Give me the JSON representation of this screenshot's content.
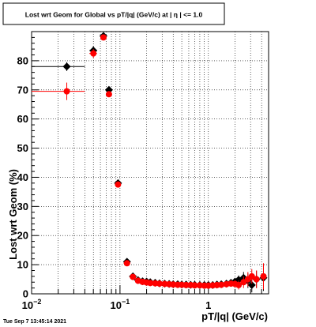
{
  "footer": {
    "timestamp": "Tue Sep  7 13:45:14 2021"
  },
  "chart_data": {
    "type": "scatter",
    "title": "Lost wrt Geom for Global vs pT/|q| (GeV/c) at |  η | <= 1.0",
    "xlabel": "pT/|q| (GeV/c)",
    "ylabel": "Lost wrt Geom (%)",
    "xscale": "log",
    "xlim": [
      0.01,
      4.8
    ],
    "ylim": [
      0,
      90
    ],
    "grid": true,
    "x_tick_labels": [
      {
        "value": 0.01,
        "label": "10",
        "exp": "−2"
      },
      {
        "value": 0.1,
        "label": "10",
        "exp": "−1"
      },
      {
        "value": 1,
        "label": "1",
        "exp": ""
      }
    ],
    "y_tick_labels": [
      0,
      10,
      20,
      30,
      40,
      50,
      60,
      70,
      80
    ],
    "series": [
      {
        "color": "#000000",
        "marker": "diamond",
        "points": [
          {
            "x": 0.025,
            "y": 78,
            "xlo": 0.01,
            "xhi": 0.04,
            "yerr": 1.5
          },
          {
            "x": 0.05,
            "y": 83.5,
            "xlo": 0.045,
            "xhi": 0.055,
            "yerr": 1.5
          },
          {
            "x": 0.065,
            "y": 88.5,
            "xlo": 0.06,
            "xhi": 0.07,
            "yerr": 1
          },
          {
            "x": 0.075,
            "y": 70,
            "xlo": 0.07,
            "xhi": 0.08,
            "yerr": 1
          },
          {
            "x": 0.095,
            "y": 38,
            "xlo": 0.09,
            "xhi": 0.1,
            "yerr": 1
          },
          {
            "x": 0.12,
            "y": 11,
            "xlo": 0.11,
            "xhi": 0.13,
            "yerr": 1
          },
          {
            "x": 0.14,
            "y": 6,
            "yerr": 0.8
          },
          {
            "x": 0.16,
            "y": 4.7,
            "yerr": 0.5
          },
          {
            "x": 0.18,
            "y": 4.3,
            "yerr": 0.5
          },
          {
            "x": 0.2,
            "y": 4.2,
            "yerr": 0.5
          },
          {
            "x": 0.22,
            "y": 4.0,
            "yerr": 0.5
          },
          {
            "x": 0.25,
            "y": 3.8,
            "yerr": 0.5
          },
          {
            "x": 0.28,
            "y": 3.6,
            "yerr": 0.5
          },
          {
            "x": 0.32,
            "y": 3.5,
            "yerr": 0.5
          },
          {
            "x": 0.36,
            "y": 3.4,
            "yerr": 0.5
          },
          {
            "x": 0.4,
            "y": 3.3,
            "yerr": 0.5
          },
          {
            "x": 0.45,
            "y": 3.3,
            "yerr": 0.5
          },
          {
            "x": 0.5,
            "y": 3.2,
            "yerr": 0.5
          },
          {
            "x": 0.56,
            "y": 3.2,
            "yerr": 0.5
          },
          {
            "x": 0.63,
            "y": 3.1,
            "yerr": 0.5
          },
          {
            "x": 0.7,
            "y": 3.1,
            "yerr": 0.5
          },
          {
            "x": 0.8,
            "y": 3.0,
            "yerr": 0.6
          },
          {
            "x": 0.9,
            "y": 3.0,
            "yerr": 0.6
          },
          {
            "x": 1.0,
            "y": 3.0,
            "yerr": 0.6
          },
          {
            "x": 1.12,
            "y": 3.0,
            "yerr": 0.6
          },
          {
            "x": 1.25,
            "y": 3.2,
            "yerr": 0.7
          },
          {
            "x": 1.4,
            "y": 3.3,
            "yerr": 0.7
          },
          {
            "x": 1.6,
            "y": 3.5,
            "yerr": 0.8
          },
          {
            "x": 1.8,
            "y": 3.8,
            "yerr": 1
          },
          {
            "x": 2.0,
            "y": 4.2,
            "yerr": 1.2
          },
          {
            "x": 2.2,
            "y": 4.8,
            "yerr": 1.5
          },
          {
            "x": 2.5,
            "y": 5.5,
            "yerr": 2
          },
          {
            "x": 2.8,
            "y": 4.5,
            "yerr": 2.5
          },
          {
            "x": 3.1,
            "y": 3.0,
            "yerr": 2.5
          },
          {
            "x": 3.5,
            "y": 5.0,
            "yerr": 3
          },
          {
            "x": 4.2,
            "y": 5.5,
            "yerr": 4.5
          }
        ]
      },
      {
        "color": "#ff0000",
        "marker": "circle",
        "points": [
          {
            "x": 0.025,
            "y": 69.5,
            "xlo": 0.01,
            "xhi": 0.04,
            "yerr": 3
          },
          {
            "x": 0.05,
            "y": 82.5,
            "xlo": 0.045,
            "xhi": 0.055,
            "yerr": 1.5
          },
          {
            "x": 0.065,
            "y": 88,
            "xlo": 0.06,
            "xhi": 0.07,
            "yerr": 1
          },
          {
            "x": 0.075,
            "y": 68.5,
            "xlo": 0.07,
            "xhi": 0.08,
            "yerr": 1
          },
          {
            "x": 0.095,
            "y": 37.5,
            "xlo": 0.09,
            "xhi": 0.1,
            "yerr": 1
          },
          {
            "x": 0.12,
            "y": 10.5,
            "xlo": 0.11,
            "xhi": 0.13,
            "yerr": 1
          },
          {
            "x": 0.14,
            "y": 5.8,
            "yerr": 0.8
          },
          {
            "x": 0.16,
            "y": 4.5,
            "yerr": 0.5
          },
          {
            "x": 0.18,
            "y": 4.1,
            "yerr": 0.5
          },
          {
            "x": 0.2,
            "y": 3.9,
            "yerr": 0.5
          },
          {
            "x": 0.22,
            "y": 3.7,
            "yerr": 0.5
          },
          {
            "x": 0.25,
            "y": 3.6,
            "yerr": 0.5
          },
          {
            "x": 0.28,
            "y": 3.5,
            "yerr": 0.5
          },
          {
            "x": 0.32,
            "y": 3.4,
            "yerr": 0.5
          },
          {
            "x": 0.36,
            "y": 3.3,
            "yerr": 0.5
          },
          {
            "x": 0.4,
            "y": 3.2,
            "yerr": 0.5
          },
          {
            "x": 0.45,
            "y": 3.1,
            "yerr": 0.5
          },
          {
            "x": 0.5,
            "y": 3.1,
            "yerr": 0.5
          },
          {
            "x": 0.56,
            "y": 3.0,
            "yerr": 0.5
          },
          {
            "x": 0.63,
            "y": 3.0,
            "yerr": 0.5
          },
          {
            "x": 0.7,
            "y": 2.9,
            "yerr": 0.5
          },
          {
            "x": 0.8,
            "y": 2.9,
            "yerr": 0.6
          },
          {
            "x": 0.9,
            "y": 2.8,
            "yerr": 0.6
          },
          {
            "x": 1.0,
            "y": 2.8,
            "yerr": 0.6
          },
          {
            "x": 1.12,
            "y": 2.9,
            "yerr": 0.6
          },
          {
            "x": 1.25,
            "y": 3.0,
            "yerr": 0.7
          },
          {
            "x": 1.4,
            "y": 3.1,
            "yerr": 0.7
          },
          {
            "x": 1.6,
            "y": 3.3,
            "yerr": 0.8
          },
          {
            "x": 1.8,
            "y": 3.5,
            "yerr": 1
          },
          {
            "x": 2.0,
            "y": 3.4,
            "yerr": 1.2
          },
          {
            "x": 2.2,
            "y": 3.0,
            "yerr": 1.5
          },
          {
            "x": 2.5,
            "y": 4.0,
            "yerr": 2
          },
          {
            "x": 2.8,
            "y": 5.0,
            "yerr": 2.5
          },
          {
            "x": 3.1,
            "y": 6.0,
            "yerr": 2.5
          },
          {
            "x": 3.5,
            "y": 5.0,
            "yerr": 3
          },
          {
            "x": 4.2,
            "y": 6.0,
            "yerr": 4.5
          }
        ]
      }
    ]
  }
}
